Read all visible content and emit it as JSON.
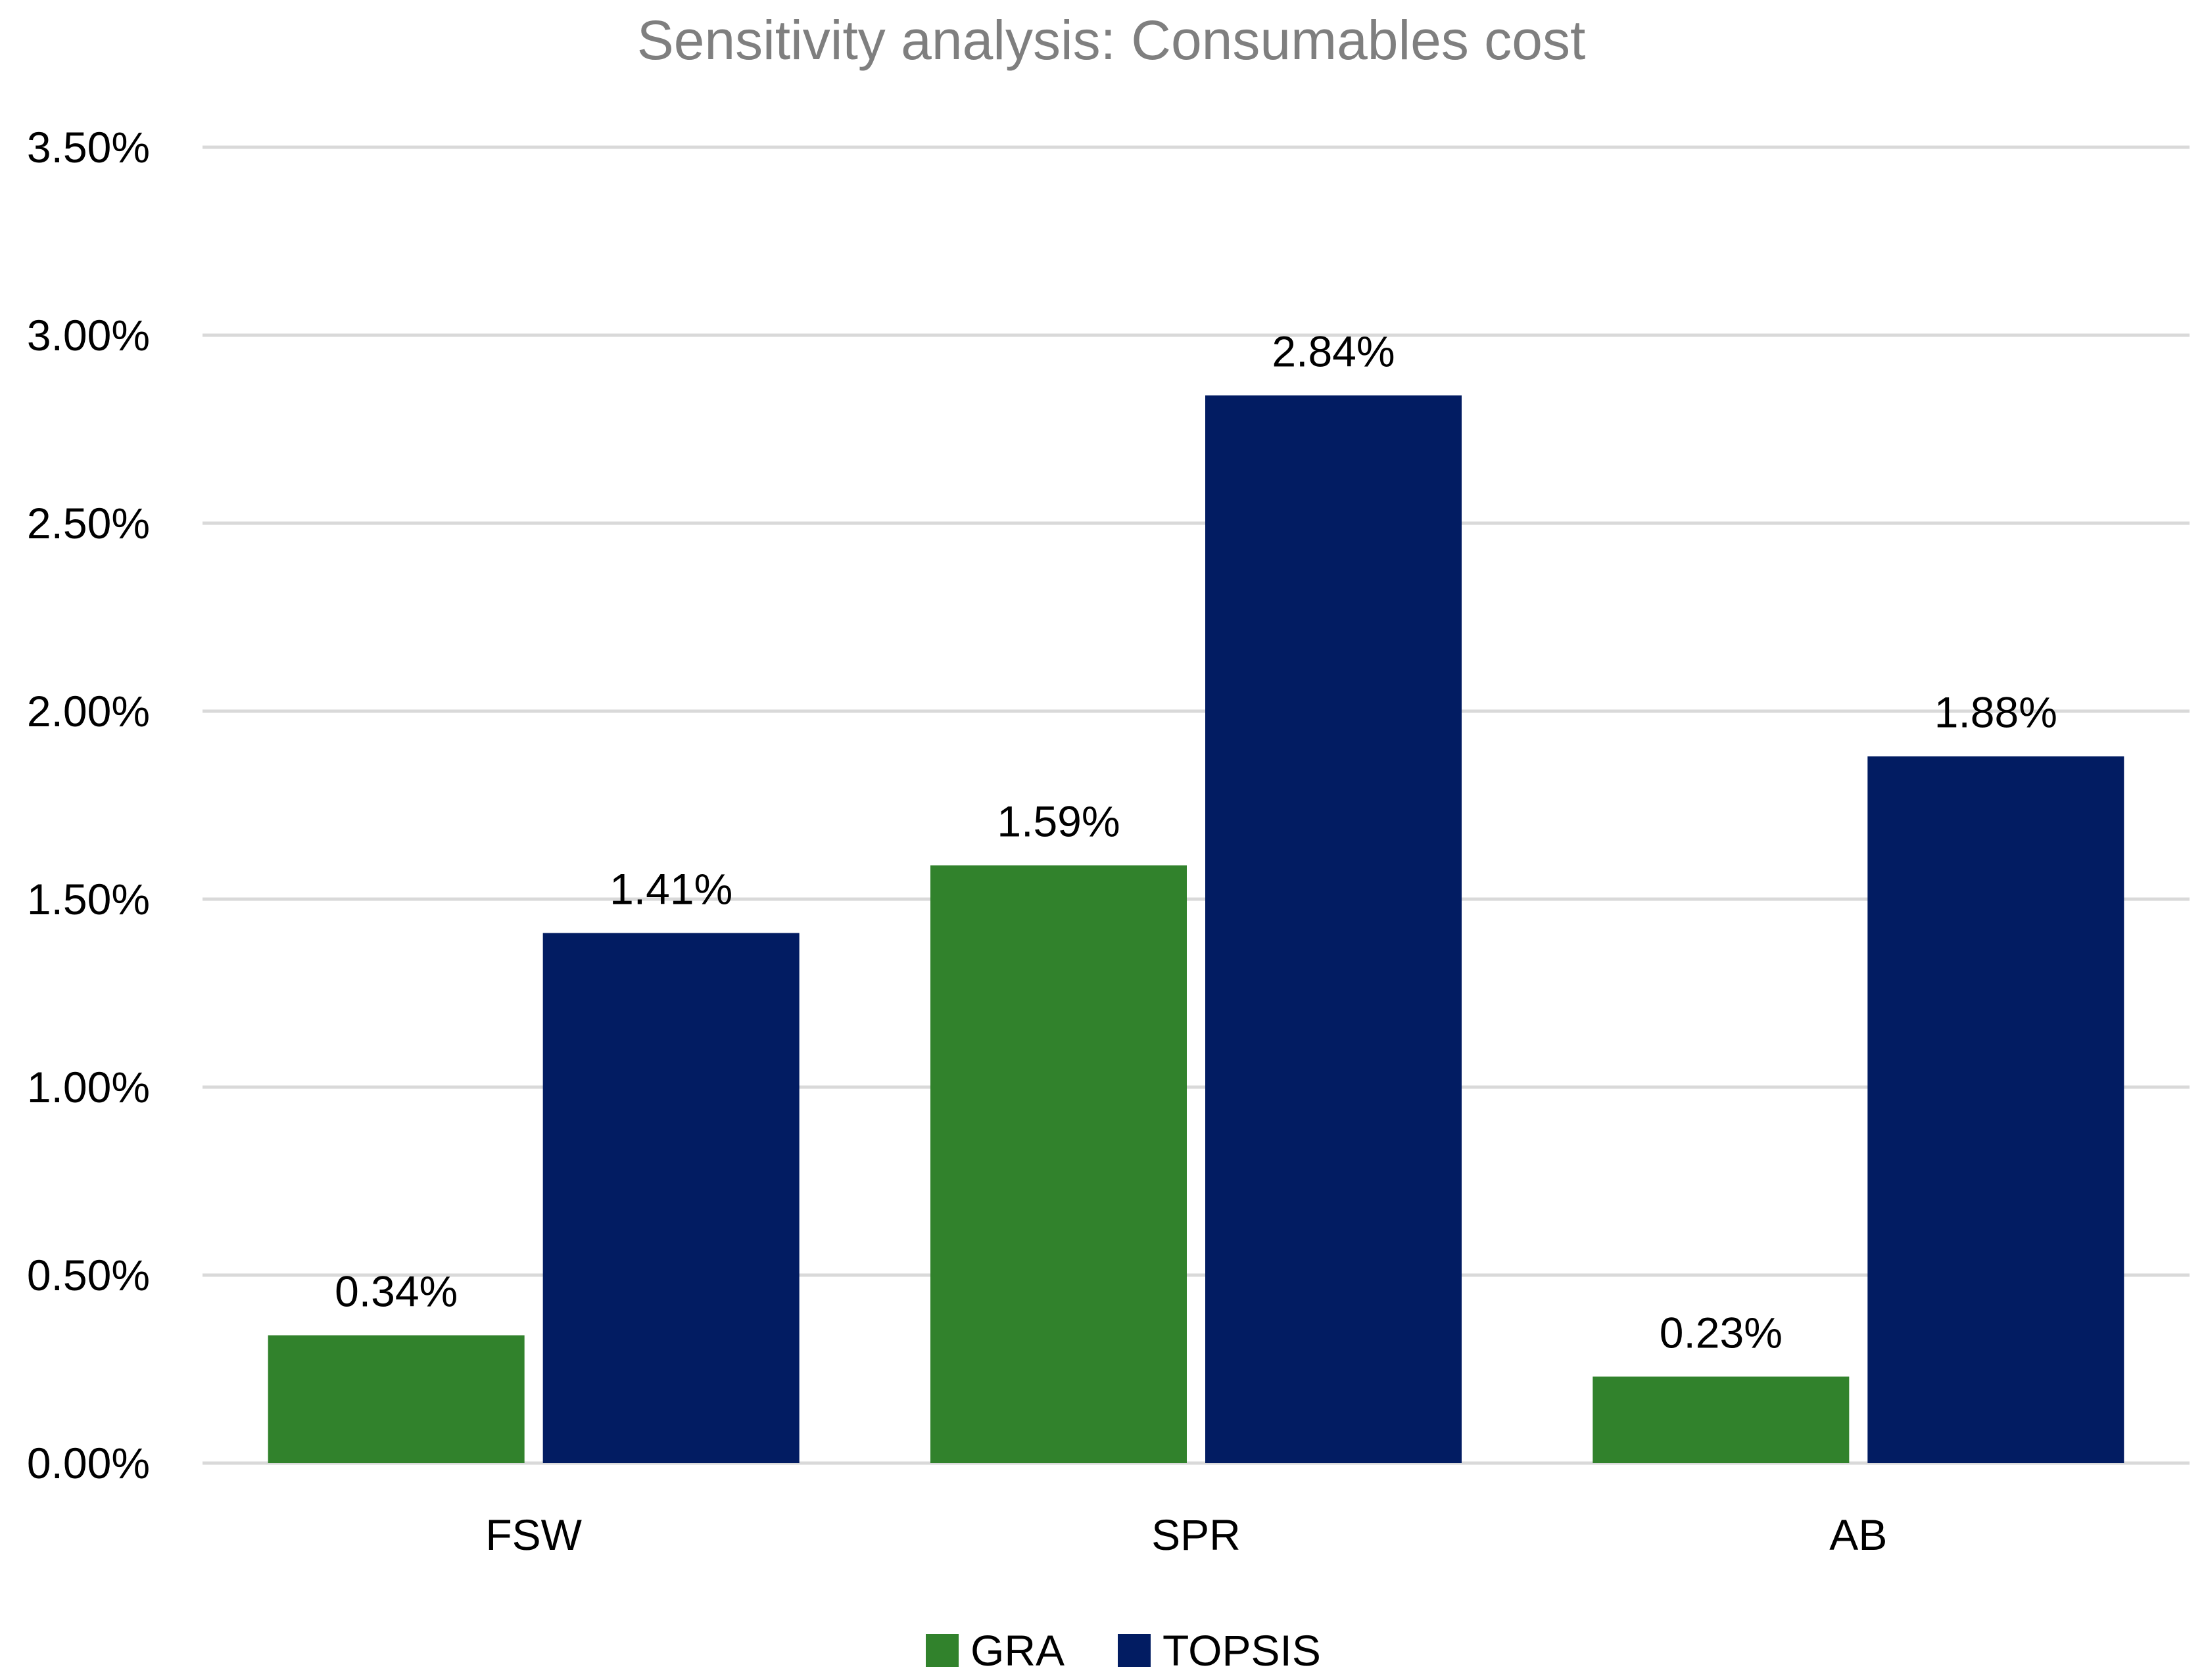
{
  "chart_data": {
    "type": "bar",
    "title": "Sensitivity analysis: Consumables cost",
    "xlabel": "",
    "ylabel": "",
    "categories": [
      "FSW",
      "SPR",
      "AB"
    ],
    "series": [
      {
        "name": "GRA",
        "color": "#31822c",
        "values": [
          0.34,
          1.59,
          0.23
        ],
        "labels": [
          "0.34%",
          "1.59%",
          "0.23%"
        ]
      },
      {
        "name": "TOPSIS",
        "color": "#021c62",
        "values": [
          1.41,
          2.84,
          1.88
        ],
        "labels": [
          "1.41%",
          "2.84%",
          "1.88%"
        ]
      }
    ],
    "ylim": [
      0,
      3.5
    ],
    "yticks": [
      0,
      0.5,
      1.0,
      1.5,
      2.0,
      2.5,
      3.0,
      3.5
    ],
    "ytick_labels": [
      "0.00%",
      "0.50%",
      "1.00%",
      "1.50%",
      "2.00%",
      "2.50%",
      "3.00%",
      "3.50%"
    ],
    "grid": true,
    "legend_position": "bottom"
  }
}
